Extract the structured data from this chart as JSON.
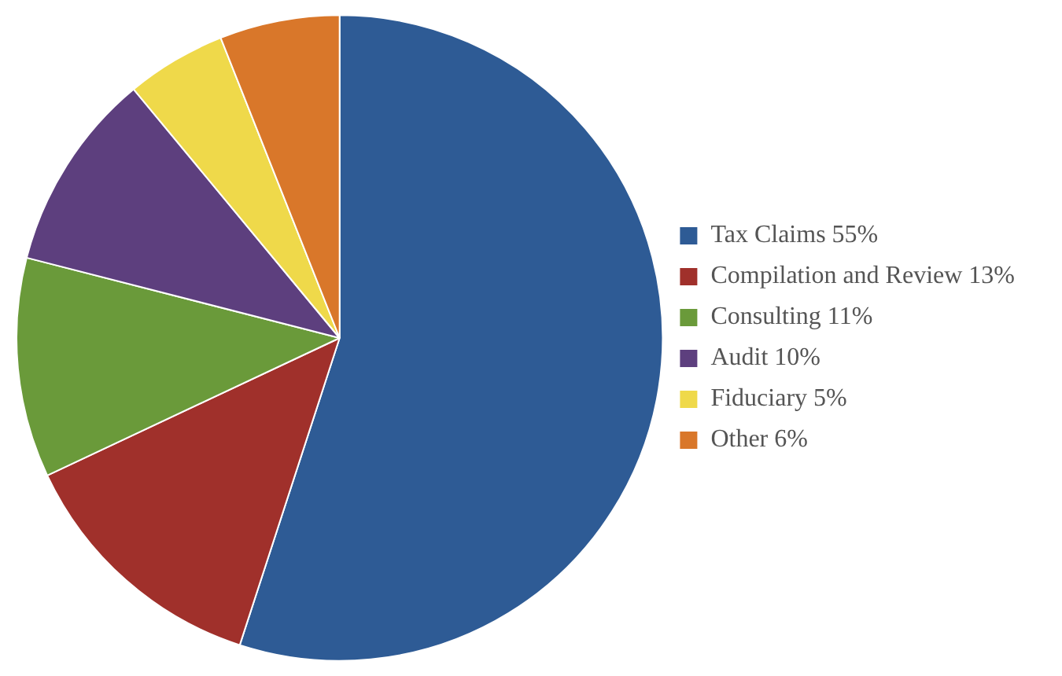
{
  "chart_data": {
    "type": "pie",
    "categories": [
      "Tax Claims 55%",
      "Compilation and Review 13%",
      "Consulting 11%",
      "Audit 10%",
      "Fiduciary 5%",
      "Other 6%"
    ],
    "values": [
      55,
      13,
      11,
      10,
      5,
      6
    ],
    "colors": [
      "#2e5b95",
      "#a0302b",
      "#6a9a3a",
      "#5d3f7e",
      "#efd94a",
      "#d9772a"
    ],
    "legend": "right"
  }
}
